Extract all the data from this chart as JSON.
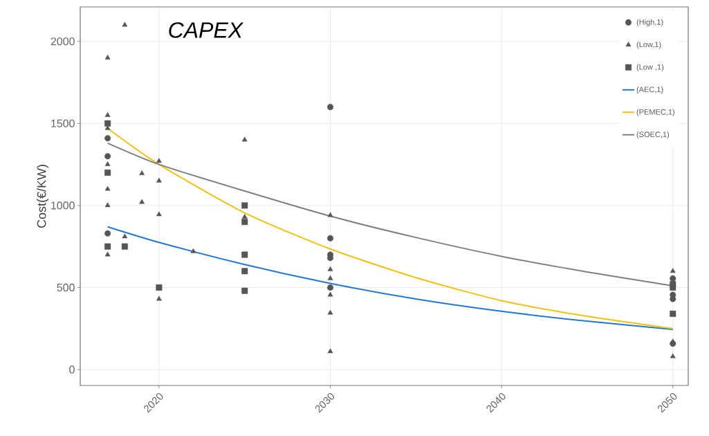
{
  "chart_data": {
    "type": "scatter",
    "title": "CAPEX",
    "ylabel": "Cost(€/KW)",
    "xlim": [
      2015.4,
      2050.9
    ],
    "ylim": [
      -97,
      2210
    ],
    "xticks": [
      2020,
      2030,
      2040,
      2050
    ],
    "yticks": [
      0,
      500,
      1000,
      1500,
      2000
    ],
    "grid": true,
    "legend": "top right",
    "series": [
      {
        "name": "(High,1)",
        "marker": "circle",
        "color": "#555555",
        "x": [
          2017,
          2017,
          2017,
          2030,
          2030,
          2030,
          2030,
          2030,
          2050,
          2050,
          2050,
          2050
        ],
        "values": [
          1410,
          1300,
          830,
          1600,
          800,
          700,
          680,
          500,
          555,
          455,
          430,
          158
        ]
      },
      {
        "name": "(Low,1)",
        "marker": "triangle",
        "color": "#555555",
        "x": [
          2017,
          2017,
          2017,
          2017,
          2017,
          2017,
          2017,
          2018,
          2018,
          2019,
          2019,
          2020,
          2020,
          2020,
          2020,
          2022,
          2025,
          2025,
          2030,
          2030,
          2030,
          2030,
          2030,
          2030,
          2030,
          2050,
          2050,
          2050
        ],
        "values": [
          1900,
          1550,
          1470,
          1250,
          1100,
          1000,
          700,
          2100,
          810,
          1195,
          1020,
          1270,
          1150,
          945,
          430,
          720,
          1400,
          930,
          940,
          610,
          555,
          500,
          455,
          345,
          110,
          600,
          170,
          80
        ]
      },
      {
        "name": "(Low ,1)",
        "marker": "square",
        "color": "#555555",
        "x": [
          2017,
          2017,
          2017,
          2018,
          2020,
          2025,
          2025,
          2025,
          2025,
          2025,
          2050,
          2050,
          2050
        ],
        "values": [
          1500,
          1200,
          750,
          750,
          500,
          1000,
          900,
          700,
          600,
          480,
          520,
          500,
          340
        ]
      },
      {
        "name": "(AEC,1)",
        "type": "line",
        "marker": "none",
        "color": "#1f78d1",
        "x": [
          2017,
          2020,
          2025,
          2030,
          2035,
          2040,
          2045,
          2050
        ],
        "values": [
          870,
          775,
          640,
          525,
          430,
          355,
          295,
          245
        ]
      },
      {
        "name": "(PEMEC,1)",
        "type": "line",
        "marker": "none",
        "color": "#f2c10f",
        "x": [
          2017,
          2020,
          2025,
          2030,
          2035,
          2040,
          2045,
          2050
        ],
        "values": [
          1470,
          1250,
          955,
          735,
          560,
          420,
          325,
          250
        ]
      },
      {
        "name": "(SOEC,1)",
        "type": "line",
        "marker": "none",
        "color": "#7f7f7f",
        "x": [
          2017,
          2020,
          2025,
          2030,
          2035,
          2040,
          2045,
          2050
        ],
        "values": [
          1380,
          1250,
          1088,
          935,
          805,
          690,
          595,
          510
        ]
      }
    ]
  }
}
